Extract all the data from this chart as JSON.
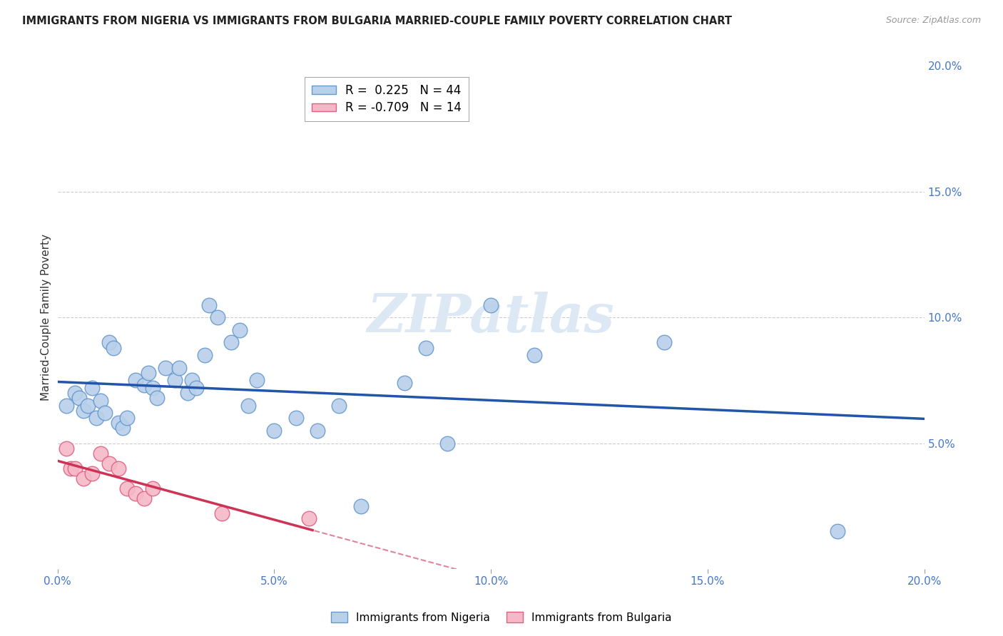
{
  "title": "IMMIGRANTS FROM NIGERIA VS IMMIGRANTS FROM BULGARIA MARRIED-COUPLE FAMILY POVERTY CORRELATION CHART",
  "source": "Source: ZipAtlas.com",
  "ylabel": "Married-Couple Family Poverty",
  "xlim": [
    0.0,
    0.2
  ],
  "ylim": [
    0.0,
    0.2
  ],
  "xticks": [
    0.0,
    0.05,
    0.1,
    0.15,
    0.2
  ],
  "yticks": [
    0.05,
    0.1,
    0.15,
    0.2
  ],
  "xtick_labels": [
    "0.0%",
    "5.0%",
    "10.0%",
    "15.0%",
    "20.0%"
  ],
  "ytick_labels": [
    "5.0%",
    "10.0%",
    "15.0%",
    "20.0%"
  ],
  "nigeria_R": 0.225,
  "nigeria_N": 44,
  "bulgaria_R": -0.709,
  "bulgaria_N": 14,
  "nigeria_color": "#b8d0ea",
  "nigeria_edge_color": "#6699cc",
  "bulgaria_color": "#f5b8c8",
  "bulgaria_edge_color": "#e06080",
  "nigeria_line_color": "#2255aa",
  "bulgaria_line_color": "#cc3355",
  "nigeria_x": [
    0.002,
    0.004,
    0.005,
    0.006,
    0.007,
    0.008,
    0.009,
    0.01,
    0.011,
    0.012,
    0.013,
    0.014,
    0.015,
    0.016,
    0.018,
    0.02,
    0.021,
    0.022,
    0.023,
    0.025,
    0.027,
    0.028,
    0.03,
    0.031,
    0.032,
    0.034,
    0.035,
    0.037,
    0.04,
    0.042,
    0.044,
    0.046,
    0.05,
    0.055,
    0.06,
    0.065,
    0.07,
    0.08,
    0.085,
    0.09,
    0.1,
    0.11,
    0.14,
    0.18
  ],
  "nigeria_y": [
    0.065,
    0.07,
    0.068,
    0.063,
    0.065,
    0.072,
    0.06,
    0.067,
    0.062,
    0.09,
    0.088,
    0.058,
    0.056,
    0.06,
    0.075,
    0.073,
    0.078,
    0.072,
    0.068,
    0.08,
    0.075,
    0.08,
    0.07,
    0.075,
    0.072,
    0.085,
    0.105,
    0.1,
    0.09,
    0.095,
    0.065,
    0.075,
    0.055,
    0.06,
    0.055,
    0.065,
    0.025,
    0.074,
    0.088,
    0.05,
    0.105,
    0.085,
    0.09,
    0.015
  ],
  "bulgaria_x": [
    0.002,
    0.003,
    0.004,
    0.006,
    0.008,
    0.01,
    0.012,
    0.014,
    0.016,
    0.018,
    0.02,
    0.022,
    0.038,
    0.058
  ],
  "bulgaria_y": [
    0.048,
    0.04,
    0.04,
    0.036,
    0.038,
    0.046,
    0.042,
    0.04,
    0.032,
    0.03,
    0.028,
    0.032,
    0.022,
    0.02
  ],
  "watermark_text": "ZIPatlas",
  "background_color": "#ffffff",
  "grid_color": "#cccccc"
}
